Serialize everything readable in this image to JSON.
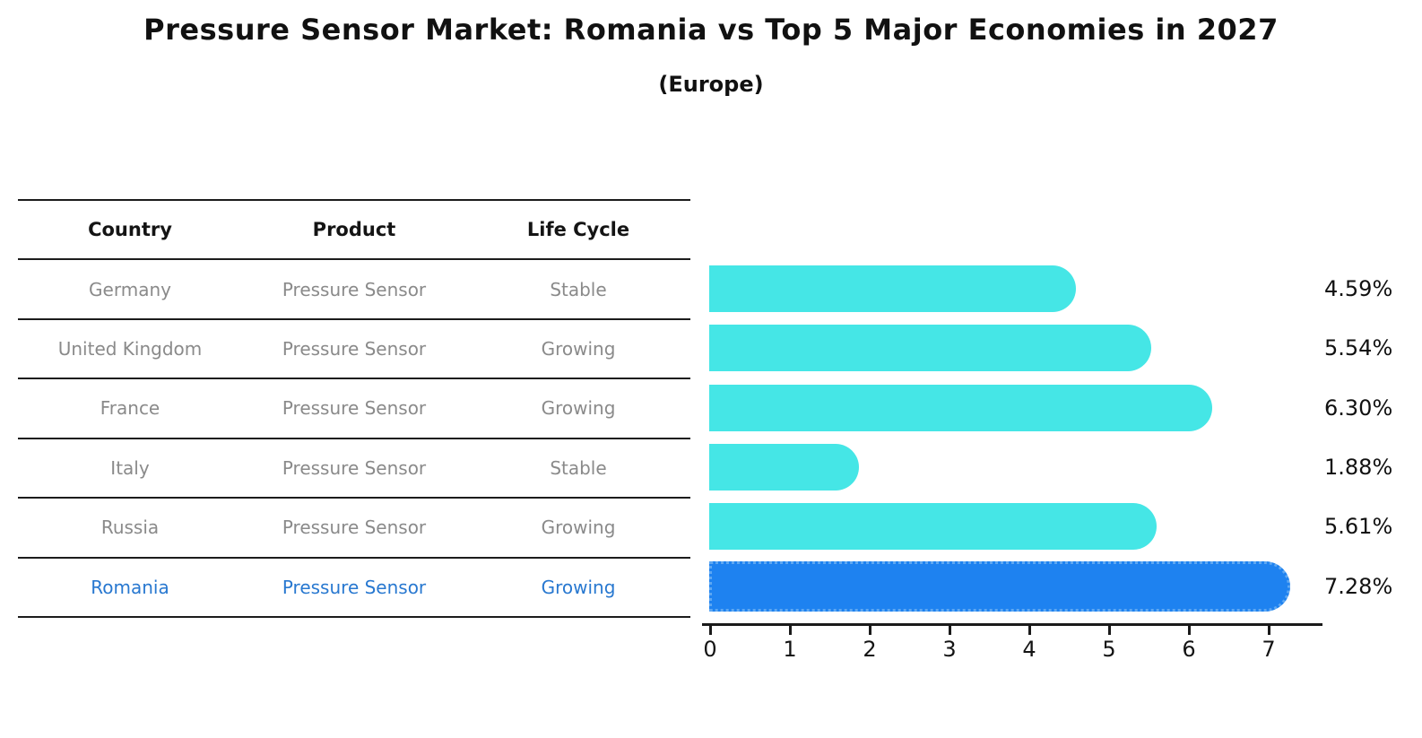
{
  "title": "Pressure Sensor Market: Romania vs Top 5 Major Economies in 2027",
  "subtitle": "(Europe)",
  "table": {
    "headers": {
      "country": "Country",
      "product": "Product",
      "life_cycle": "Life Cycle"
    },
    "rows": [
      {
        "country": "Germany",
        "product": "Pressure Sensor",
        "life_cycle": "Stable",
        "highlight": false
      },
      {
        "country": "United Kingdom",
        "product": "Pressure Sensor",
        "life_cycle": "Growing",
        "highlight": false
      },
      {
        "country": "France",
        "product": "Pressure Sensor",
        "life_cycle": "Growing",
        "highlight": false
      },
      {
        "country": "Italy",
        "product": "Pressure Sensor",
        "life_cycle": "Stable",
        "highlight": false
      },
      {
        "country": "Russia",
        "product": "Pressure Sensor",
        "life_cycle": "Growing",
        "highlight": false
      },
      {
        "country": "Romania",
        "product": "Pressure Sensor",
        "life_cycle": "Growing",
        "highlight": true
      }
    ]
  },
  "chart_data": {
    "type": "bar",
    "orientation": "horizontal",
    "categories": [
      "Germany",
      "United Kingdom",
      "France",
      "Italy",
      "Russia",
      "Romania"
    ],
    "values": [
      4.59,
      5.54,
      6.3,
      1.88,
      5.61,
      7.28
    ],
    "labels": [
      "4.59%",
      "5.54%",
      "6.30%",
      "1.88%",
      "5.61%",
      "7.28%"
    ],
    "x_ticks": [
      "0",
      "1",
      "2",
      "3",
      "4",
      "5",
      "6",
      "7"
    ],
    "xlim": [
      0,
      7.7
    ],
    "grid": false,
    "legend": false,
    "highlight_category": "Romania",
    "colors": {
      "bar": "#45e6e6",
      "highlight_bar": "#1e82f0",
      "highlight_bar_edge": "#5fa8f2",
      "highlight_text": "#2878d0",
      "text": "#111111",
      "muted_text": "#8a8a8a",
      "line": "#1c1c1c"
    }
  }
}
